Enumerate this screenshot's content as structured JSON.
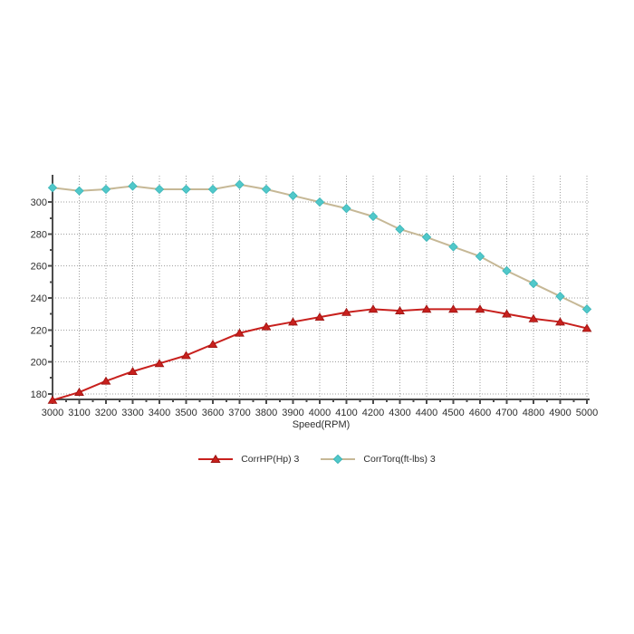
{
  "style": {
    "background": "#ffffff",
    "grid_color": "#9f9f9f",
    "axis_color": "#4c4c4c",
    "text_color": "#2e2e2e"
  },
  "chart_data": {
    "type": "line",
    "title": "",
    "xlabel": "Speed(RPM)",
    "ylabel": "",
    "grid": "dotted",
    "legend_position": "bottom",
    "xlim": [
      3000,
      5000
    ],
    "ylim": [
      176.5,
      316.5
    ],
    "x_ticks": [
      3000,
      3100,
      3200,
      3300,
      3400,
      3500,
      3600,
      3700,
      3800,
      3900,
      4000,
      4100,
      4200,
      4300,
      4400,
      4500,
      4600,
      4700,
      4800,
      4900,
      5000
    ],
    "x_minor_step": 50,
    "y_ticks": [
      180,
      200,
      220,
      240,
      260,
      280,
      300
    ],
    "y_minor_ticks": [
      190,
      210,
      230,
      250,
      270,
      290,
      310
    ],
    "x": [
      3000,
      3100,
      3200,
      3300,
      3400,
      3500,
      3600,
      3700,
      3800,
      3900,
      4000,
      4100,
      4200,
      4300,
      4400,
      4500,
      4600,
      4700,
      4800,
      4900,
      5000
    ],
    "series": [
      {
        "id": "corrhp",
        "name": "CorrHP(Hp) 3",
        "color": "#c8201d",
        "marker": "triangle",
        "marker_fill": "#c8201d",
        "marker_edge": "#9b1412",
        "values": [
          176,
          181,
          188,
          194,
          199,
          204,
          211,
          218,
          222,
          225,
          228,
          231,
          233,
          232,
          233,
          233,
          233,
          230,
          227,
          225,
          221
        ]
      },
      {
        "id": "corrtorq",
        "name": "CorrTorq(ft-lbs) 3",
        "color": "#c6b896",
        "marker": "diamond",
        "marker_fill": "#50c8ca",
        "marker_edge": "#3db5b7",
        "values": [
          309,
          307,
          308,
          310,
          308,
          308,
          308,
          311,
          308,
          304,
          300,
          296,
          291,
          283,
          278,
          272,
          266,
          257,
          249,
          241,
          233
        ]
      }
    ]
  }
}
